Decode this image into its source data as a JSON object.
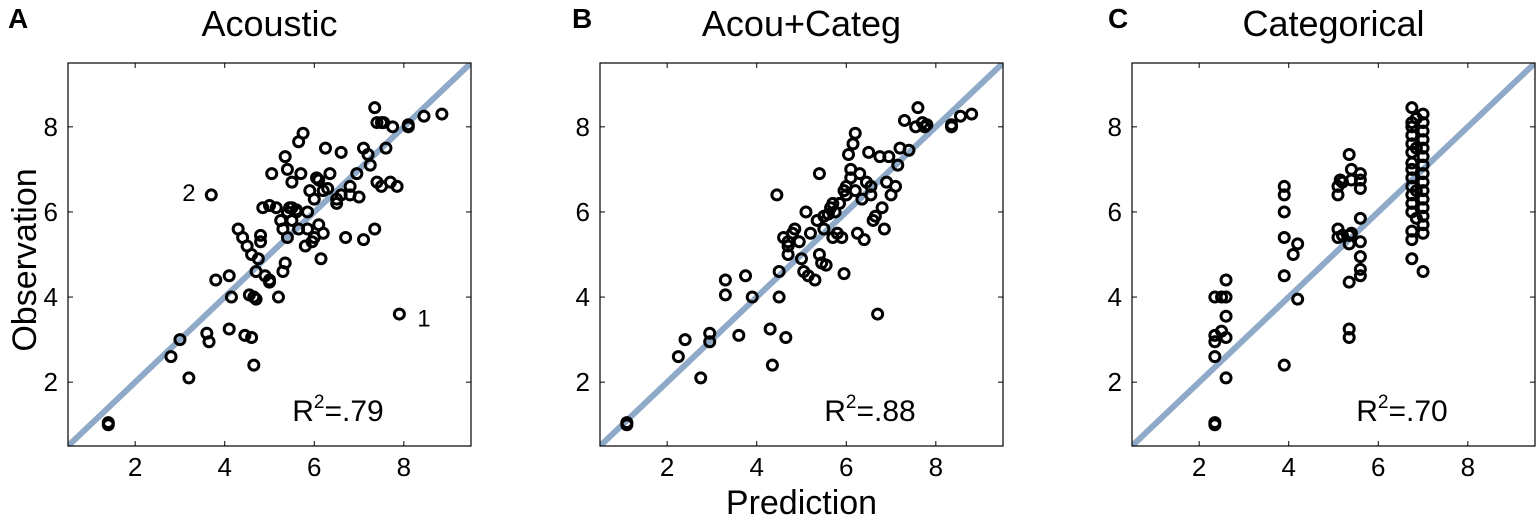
{
  "chart_data": [
    {
      "type": "scatter",
      "panel_label": "A",
      "title": "Acoustic",
      "r2_prefix": "R",
      "r2_sup": "2",
      "r2_value": "=.79",
      "xlim": [
        0.5,
        9.5
      ],
      "ylim": [
        0.5,
        9.5
      ],
      "xticks": [
        2,
        4,
        6,
        8
      ],
      "yticks": [
        2,
        4,
        6,
        8
      ],
      "identity_line_color": "#8fa9c8",
      "marker_color": "#000000",
      "annotations": [
        {
          "text": "2",
          "x": 3.2,
          "y": 6.45
        },
        {
          "text": "1",
          "x": 8.45,
          "y": 3.5
        }
      ],
      "points": [
        [
          1.4,
          1.0
        ],
        [
          1.4,
          1.05
        ],
        [
          2.8,
          2.6
        ],
        [
          3.0,
          3.0
        ],
        [
          3.2,
          2.1
        ],
        [
          3.6,
          3.15
        ],
        [
          3.65,
          2.95
        ],
        [
          3.7,
          6.4
        ],
        [
          3.8,
          4.4
        ],
        [
          4.1,
          3.25
        ],
        [
          4.1,
          4.5
        ],
        [
          4.15,
          4.0
        ],
        [
          4.3,
          5.6
        ],
        [
          4.4,
          5.4
        ],
        [
          4.45,
          3.1
        ],
        [
          4.5,
          5.2
        ],
        [
          4.55,
          4.05
        ],
        [
          4.6,
          3.05
        ],
        [
          4.6,
          5.0
        ],
        [
          4.65,
          4.0
        ],
        [
          4.65,
          2.4
        ],
        [
          4.7,
          3.95
        ],
        [
          4.7,
          4.6
        ],
        [
          4.75,
          4.9
        ],
        [
          4.8,
          5.45
        ],
        [
          4.8,
          5.3
        ],
        [
          4.85,
          6.1
        ],
        [
          4.9,
          4.5
        ],
        [
          5.0,
          6.15
        ],
        [
          5.0,
          4.4
        ],
        [
          5.0,
          4.35
        ],
        [
          5.05,
          6.9
        ],
        [
          5.15,
          6.1
        ],
        [
          5.2,
          4.0
        ],
        [
          5.25,
          5.8
        ],
        [
          5.3,
          5.6
        ],
        [
          5.3,
          4.6
        ],
        [
          5.35,
          4.8
        ],
        [
          5.35,
          7.3
        ],
        [
          5.4,
          5.4
        ],
        [
          5.4,
          6.0
        ],
        [
          5.4,
          7.0
        ],
        [
          5.45,
          6.1
        ],
        [
          5.5,
          6.7
        ],
        [
          5.5,
          5.8
        ],
        [
          5.5,
          6.1
        ],
        [
          5.6,
          6.0
        ],
        [
          5.6,
          6.05
        ],
        [
          5.65,
          7.65
        ],
        [
          5.65,
          5.6
        ],
        [
          5.7,
          6.9
        ],
        [
          5.75,
          7.85
        ],
        [
          5.8,
          5.2
        ],
        [
          5.85,
          6.0
        ],
        [
          5.85,
          5.6
        ],
        [
          5.9,
          6.5
        ],
        [
          5.95,
          5.3
        ],
        [
          6.0,
          6.3
        ],
        [
          6.0,
          5.4
        ],
        [
          6.05,
          6.8
        ],
        [
          6.1,
          6.75
        ],
        [
          6.1,
          5.7
        ],
        [
          6.15,
          4.9
        ],
        [
          6.2,
          6.5
        ],
        [
          6.2,
          5.5
        ],
        [
          6.25,
          7.5
        ],
        [
          6.3,
          6.55
        ],
        [
          6.35,
          6.9
        ],
        [
          6.5,
          6.3
        ],
        [
          6.5,
          6.2
        ],
        [
          6.6,
          6.4
        ],
        [
          6.6,
          7.4
        ],
        [
          6.7,
          5.4
        ],
        [
          6.8,
          6.6
        ],
        [
          6.8,
          6.4
        ],
        [
          6.95,
          6.9
        ],
        [
          7.0,
          6.35
        ],
        [
          7.1,
          5.35
        ],
        [
          7.1,
          7.5
        ],
        [
          7.2,
          7.35
        ],
        [
          7.25,
          7.1
        ],
        [
          7.35,
          5.6
        ],
        [
          7.35,
          8.45
        ],
        [
          7.4,
          6.7
        ],
        [
          7.4,
          8.1
        ],
        [
          7.5,
          8.1
        ],
        [
          7.5,
          6.6
        ],
        [
          7.55,
          8.1
        ],
        [
          7.6,
          7.5
        ],
        [
          7.7,
          6.7
        ],
        [
          7.75,
          8.0
        ],
        [
          7.85,
          6.6
        ],
        [
          7.9,
          3.6
        ],
        [
          8.1,
          8.0
        ],
        [
          8.1,
          8.05
        ],
        [
          8.45,
          8.25
        ],
        [
          8.85,
          8.3
        ]
      ]
    },
    {
      "type": "scatter",
      "panel_label": "B",
      "title": "Acou+Categ",
      "r2_prefix": "R",
      "r2_sup": "2",
      "r2_value": "=.88",
      "xlabel": "Prediction",
      "xlim": [
        0.5,
        9.5
      ],
      "ylim": [
        0.5,
        9.5
      ],
      "xticks": [
        2,
        4,
        6,
        8
      ],
      "yticks": [
        2,
        4,
        6,
        8
      ],
      "identity_line_color": "#8fa9c8",
      "marker_color": "#000000",
      "annotations": [],
      "points": [
        [
          1.1,
          1.0
        ],
        [
          1.1,
          1.05
        ],
        [
          2.25,
          2.6
        ],
        [
          2.4,
          3.0
        ],
        [
          2.75,
          2.1
        ],
        [
          2.95,
          3.15
        ],
        [
          2.95,
          2.95
        ],
        [
          3.3,
          4.05
        ],
        [
          3.3,
          4.4
        ],
        [
          3.6,
          3.1
        ],
        [
          3.75,
          4.5
        ],
        [
          3.9,
          4.0
        ],
        [
          4.3,
          3.25
        ],
        [
          4.35,
          2.4
        ],
        [
          4.45,
          6.4
        ],
        [
          4.5,
          4.0
        ],
        [
          4.5,
          4.6
        ],
        [
          4.6,
          5.4
        ],
        [
          4.65,
          3.05
        ],
        [
          4.7,
          5.0
        ],
        [
          4.7,
          5.3
        ],
        [
          4.7,
          5.2
        ],
        [
          4.8,
          5.5
        ],
        [
          4.85,
          5.6
        ],
        [
          4.95,
          5.3
        ],
        [
          5.0,
          4.9
        ],
        [
          5.05,
          4.6
        ],
        [
          5.1,
          6.0
        ],
        [
          5.15,
          4.5
        ],
        [
          5.2,
          5.5
        ],
        [
          5.3,
          4.4
        ],
        [
          5.35,
          5.8
        ],
        [
          5.4,
          5.0
        ],
        [
          5.4,
          6.9
        ],
        [
          5.45,
          4.8
        ],
        [
          5.5,
          5.6
        ],
        [
          5.5,
          5.9
        ],
        [
          5.55,
          4.75
        ],
        [
          5.6,
          5.95
        ],
        [
          5.65,
          6.1
        ],
        [
          5.7,
          6.2
        ],
        [
          5.7,
          5.4
        ],
        [
          5.75,
          6.0
        ],
        [
          5.8,
          5.5
        ],
        [
          5.85,
          6.2
        ],
        [
          5.9,
          5.4
        ],
        [
          5.95,
          6.5
        ],
        [
          5.95,
          4.55
        ],
        [
          6.0,
          6.6
        ],
        [
          6.0,
          6.4
        ],
        [
          6.05,
          7.35
        ],
        [
          6.1,
          7.0
        ],
        [
          6.1,
          6.8
        ],
        [
          6.15,
          7.6
        ],
        [
          6.2,
          7.85
        ],
        [
          6.2,
          6.5
        ],
        [
          6.25,
          5.5
        ],
        [
          6.3,
          6.9
        ],
        [
          6.35,
          6.3
        ],
        [
          6.4,
          5.35
        ],
        [
          6.45,
          6.7
        ],
        [
          6.5,
          7.4
        ],
        [
          6.55,
          6.4
        ],
        [
          6.55,
          6.6
        ],
        [
          6.6,
          5.8
        ],
        [
          6.65,
          5.9
        ],
        [
          6.7,
          3.6
        ],
        [
          6.75,
          7.3
        ],
        [
          6.8,
          6.1
        ],
        [
          6.85,
          5.6
        ],
        [
          6.9,
          6.7
        ],
        [
          6.95,
          7.3
        ],
        [
          7.0,
          6.4
        ],
        [
          7.1,
          6.6
        ],
        [
          7.15,
          7.1
        ],
        [
          7.2,
          7.5
        ],
        [
          7.3,
          8.15
        ],
        [
          7.4,
          7.45
        ],
        [
          7.55,
          8.0
        ],
        [
          7.6,
          8.45
        ],
        [
          7.7,
          8.1
        ],
        [
          7.75,
          8.0
        ],
        [
          7.8,
          8.05
        ],
        [
          8.35,
          8.0
        ],
        [
          8.35,
          8.05
        ],
        [
          8.55,
          8.25
        ],
        [
          8.8,
          8.3
        ]
      ]
    },
    {
      "type": "scatter",
      "panel_label": "C",
      "title": "Categorical",
      "r2_prefix": "R",
      "r2_sup": "2",
      "r2_value": "=.70",
      "xlim": [
        0.5,
        9.5
      ],
      "ylim": [
        0.5,
        9.5
      ],
      "xticks": [
        2,
        4,
        6,
        8
      ],
      "yticks": [
        2,
        4,
        6,
        8
      ],
      "identity_line_color": "#8fa9c8",
      "marker_color": "#000000",
      "annotations": [],
      "points": [
        [
          2.35,
          1.0
        ],
        [
          2.35,
          1.05
        ],
        [
          2.35,
          2.6
        ],
        [
          2.35,
          2.95
        ],
        [
          2.35,
          3.1
        ],
        [
          2.35,
          4.0
        ],
        [
          2.5,
          3.2
        ],
        [
          2.5,
          4.0
        ],
        [
          2.6,
          2.1
        ],
        [
          2.6,
          3.05
        ],
        [
          2.6,
          3.55
        ],
        [
          2.6,
          4.0
        ],
        [
          2.6,
          4.4
        ],
        [
          3.9,
          2.4
        ],
        [
          3.9,
          4.5
        ],
        [
          3.9,
          5.4
        ],
        [
          3.9,
          6.0
        ],
        [
          3.9,
          6.4
        ],
        [
          3.9,
          6.6
        ],
        [
          4.1,
          5.0
        ],
        [
          4.2,
          3.95
        ],
        [
          4.2,
          5.25
        ],
        [
          5.1,
          5.4
        ],
        [
          5.1,
          5.6
        ],
        [
          5.1,
          6.4
        ],
        [
          5.1,
          6.6
        ],
        [
          5.15,
          6.75
        ],
        [
          5.2,
          5.45
        ],
        [
          5.2,
          6.7
        ],
        [
          5.35,
          3.05
        ],
        [
          5.35,
          3.25
        ],
        [
          5.35,
          4.35
        ],
        [
          5.35,
          5.25
        ],
        [
          5.35,
          5.45
        ],
        [
          5.35,
          7.35
        ],
        [
          5.4,
          5.5
        ],
        [
          5.4,
          6.75
        ],
        [
          5.4,
          7.0
        ],
        [
          5.6,
          4.5
        ],
        [
          5.6,
          4.65
        ],
        [
          5.6,
          4.95
        ],
        [
          5.6,
          5.3
        ],
        [
          5.6,
          5.85
        ],
        [
          5.6,
          6.55
        ],
        [
          5.6,
          6.75
        ],
        [
          5.6,
          6.9
        ],
        [
          6.75,
          4.9
        ],
        [
          6.75,
          5.35
        ],
        [
          6.75,
          5.55
        ],
        [
          6.75,
          6.0
        ],
        [
          6.75,
          6.2
        ],
        [
          6.75,
          6.4
        ],
        [
          6.75,
          6.6
        ],
        [
          6.75,
          6.8
        ],
        [
          6.75,
          7.0
        ],
        [
          6.75,
          7.15
        ],
        [
          6.75,
          7.4
        ],
        [
          6.75,
          7.6
        ],
        [
          6.75,
          7.8
        ],
        [
          6.75,
          8.0
        ],
        [
          6.75,
          8.1
        ],
        [
          6.75,
          8.45
        ],
        [
          6.85,
          5.85
        ],
        [
          6.85,
          6.5
        ],
        [
          6.85,
          7.5
        ],
        [
          6.85,
          8.2
        ],
        [
          7.0,
          4.6
        ],
        [
          7.0,
          5.5
        ],
        [
          7.0,
          5.7
        ],
        [
          7.0,
          5.9
        ],
        [
          7.0,
          6.1
        ],
        [
          7.0,
          6.3
        ],
        [
          7.0,
          6.5
        ],
        [
          7.0,
          6.7
        ],
        [
          7.0,
          6.9
        ],
        [
          7.0,
          7.1
        ],
        [
          7.0,
          7.3
        ],
        [
          7.0,
          7.5
        ],
        [
          7.0,
          7.7
        ],
        [
          7.0,
          7.9
        ],
        [
          7.0,
          8.1
        ],
        [
          7.0,
          8.3
        ]
      ]
    }
  ],
  "shared_ylabel": "Observation"
}
